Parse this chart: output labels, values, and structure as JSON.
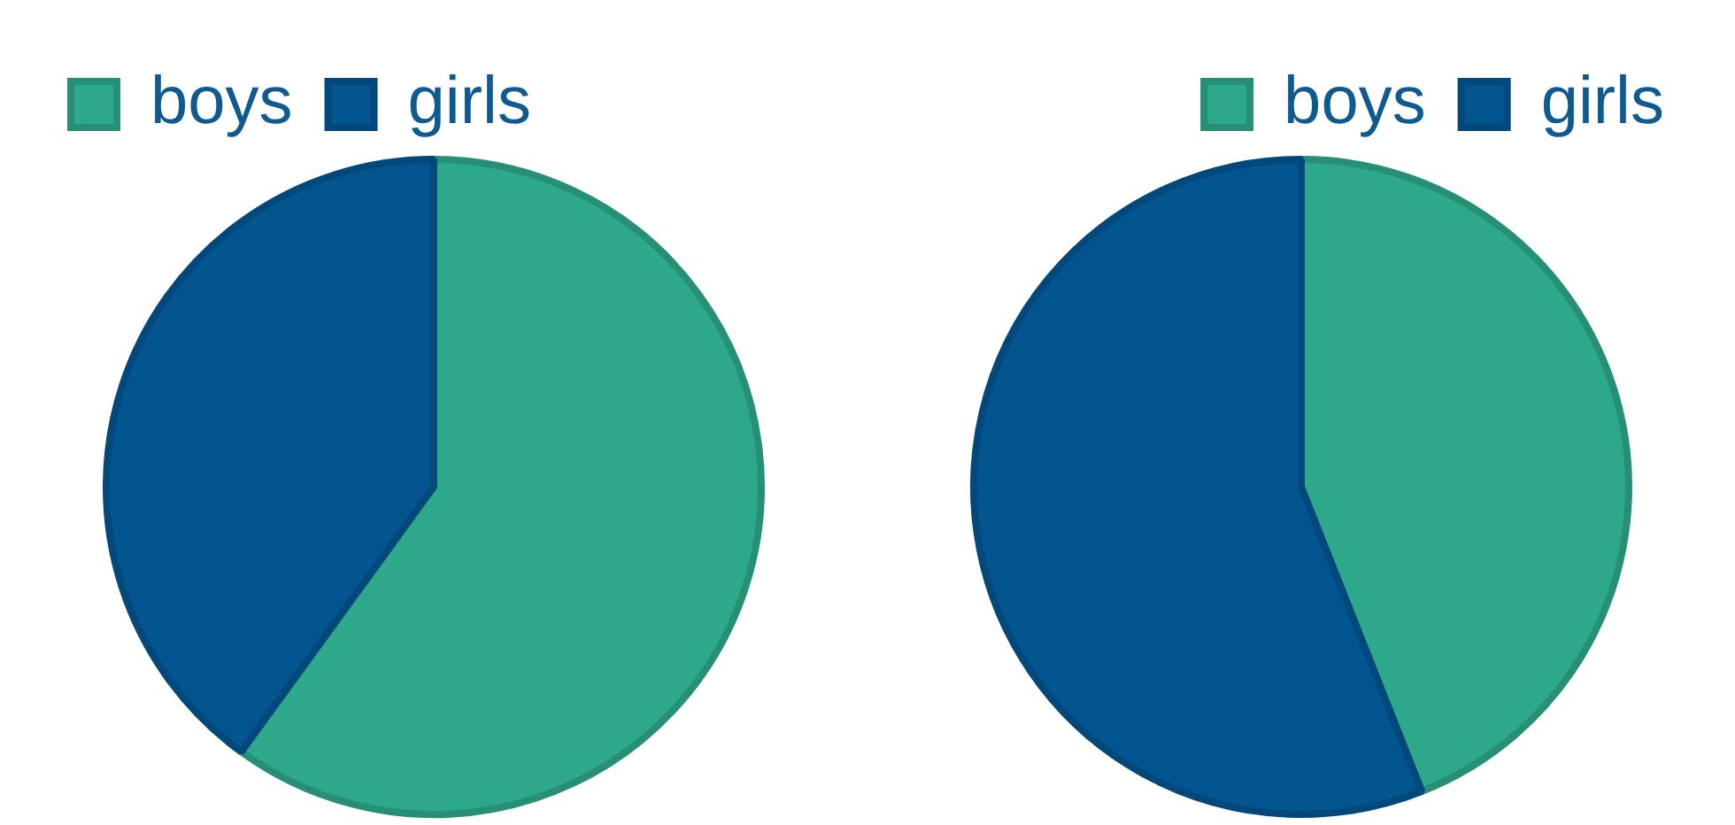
{
  "chart_data": [
    {
      "type": "pie",
      "categories": [
        "boys",
        "girls"
      ],
      "values": [
        60,
        40
      ],
      "colors": [
        "#2ea88a",
        "#02558f"
      ],
      "legend": "top left"
    },
    {
      "type": "pie",
      "categories": [
        "boys",
        "girls"
      ],
      "values": [
        44,
        56
      ],
      "colors": [
        "#2ea88a",
        "#02558f"
      ],
      "legend": "top right"
    }
  ]
}
